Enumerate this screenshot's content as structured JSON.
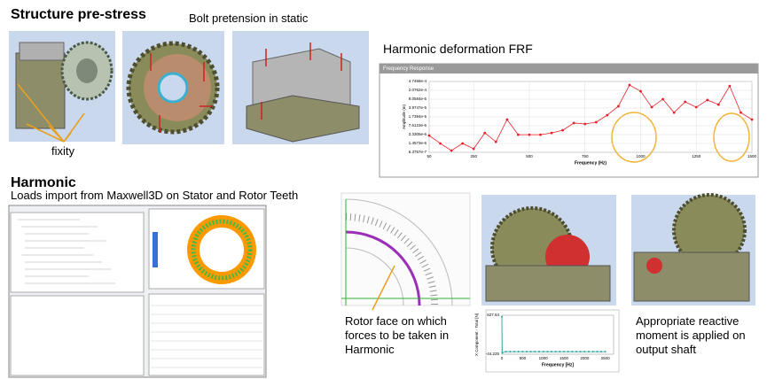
{
  "slide": {
    "title": "Structure pre-stress",
    "bolt_caption": "Bolt pretension in static",
    "fixity_label": "fixity",
    "frf_heading": "Harmonic deformation FRF",
    "harmonic_title": "Harmonic",
    "harmonic_subtitle": "Loads import from Maxwell3D on Stator and Rotor Teeth",
    "rotor_caption": "Rotor face on which forces to be taken in Harmonic",
    "moment_caption": "Appropriate reactive moment is applied on output shaft"
  },
  "chart_data": [
    {
      "type": "line",
      "title": "Frequency Response",
      "xlabel": "Frequency (Hz)",
      "ylabel": "Amplitude (m)",
      "x": [
        50,
        100,
        150,
        200,
        250,
        300,
        350,
        400,
        450,
        500,
        550,
        600,
        650,
        700,
        750,
        800,
        850,
        900,
        950,
        1000,
        1050,
        1100,
        1150,
        1200,
        1250,
        1300,
        1350,
        1400,
        1450,
        1500
      ],
      "values": [
        3.06e-06,
        1.46e-06,
        7.5e-07,
        1.46e-06,
        8.9e-07,
        3.9e-06,
        1.7e-06,
        1.36e-05,
        3.3e-06,
        3.3e-06,
        3.3e-06,
        3.9e-06,
        5e-06,
        9.8e-06,
        9e-06,
        1.06e-05,
        2.05e-05,
        4.7e-05,
        0.00034,
        0.00019,
        4.3e-05,
        9.1e-05,
        2.6e-05,
        7.1e-05,
        4.3e-05,
        8.4e-05,
        5.5e-05,
        0.00031,
        2.6e-05,
        1.36e-05
      ],
      "color": "#e8202a",
      "log_y": true,
      "grid": true,
      "xlim": [
        50,
        1500
      ],
      "xticks": [
        50,
        250,
        500,
        750,
        1000,
        1250,
        1500
      ],
      "ylim": [
        6.3767e-07,
        0.00047468
      ],
      "yticks": [
        {
          "value": 6.3767e-07,
          "label": "6.3767e-7"
        },
        {
          "value": 1.4573e-06,
          "label": "1.4573e-6"
        },
        {
          "value": 3.3305e-06,
          "label": "3.3305e-6"
        },
        {
          "value": 7.6123e-06,
          "label": "7.6123e-6"
        },
        {
          "value": 1.7394e-05,
          "label": "1.7394e-5"
        },
        {
          "value": 3.9747e-05,
          "label": "3.9747e-5"
        },
        {
          "value": 9.0584e-05,
          "label": "9.0584e-5"
        },
        {
          "value": 0.00020762,
          "label": "2.0762e-4"
        },
        {
          "value": 0.00047468,
          "label": "4.7468e-4"
        }
      ]
    },
    {
      "type": "line",
      "xlabel": "Frequency [Hz]",
      "ylabel": "X Component - Total [N]",
      "x": [
        0,
        10,
        100,
        200,
        300,
        400,
        500,
        600,
        700,
        800,
        900,
        1000,
        1100,
        1200,
        1300,
        1400,
        1500,
        1600,
        1700,
        1800,
        1900,
        2000,
        2100,
        2200,
        2300,
        2400,
        2500
      ],
      "values": [
        600,
        -20,
        0,
        0,
        0,
        0,
        0,
        0,
        0,
        0,
        0,
        0,
        0,
        0,
        0,
        0,
        0,
        0,
        0,
        0,
        0,
        0,
        0,
        0,
        0,
        0,
        0
      ],
      "color": "#2f9ea0",
      "log_y": false,
      "grid": false,
      "xlim": [
        0,
        2700
      ],
      "xticks": [
        0,
        500,
        1000,
        1500,
        2000,
        2500
      ],
      "ylim": [
        -44.225,
        627.64
      ],
      "yticks": [
        -44.225,
        627.64
      ]
    }
  ]
}
